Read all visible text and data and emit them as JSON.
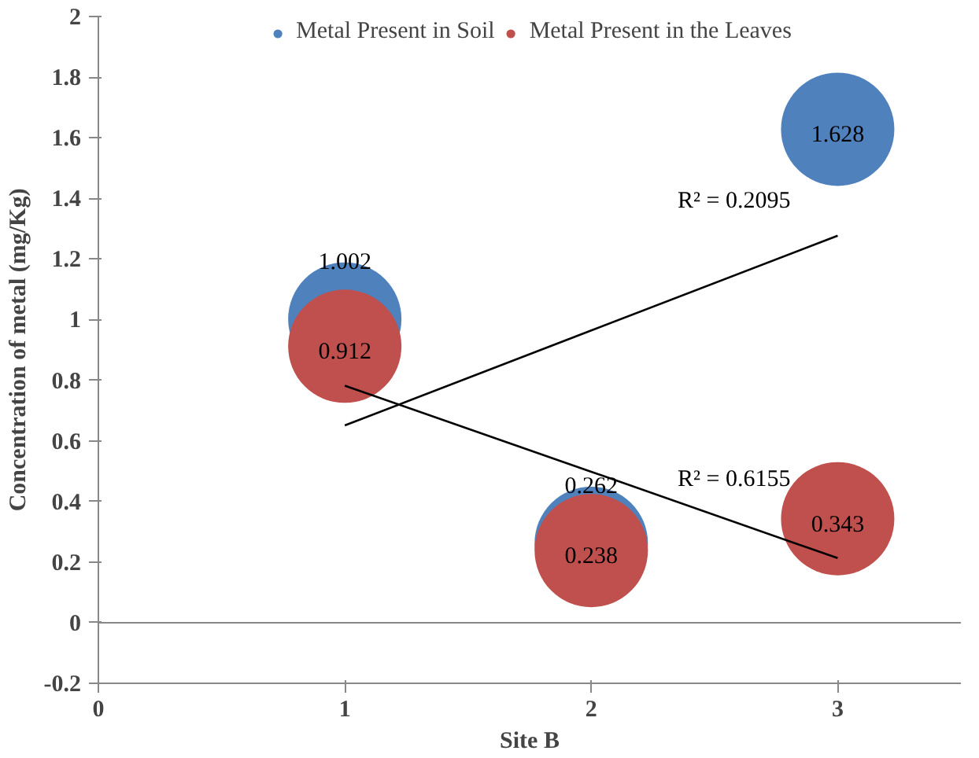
{
  "chart_data": {
    "type": "bubble",
    "xlabel": "Site B",
    "ylabel": "Concentration of metal (mg/Kg)",
    "x": [
      1,
      2,
      3
    ],
    "series": [
      {
        "name": "Metal Present in Soil",
        "color": "#4f81bd",
        "values": [
          1.002,
          0.262,
          1.628
        ],
        "sizes": [
          1,
          1,
          1
        ],
        "value_labels": [
          "1.002",
          "0.262",
          "1.628"
        ]
      },
      {
        "name": "Metal Present in the Leaves",
        "color": "#c0504d",
        "values": [
          0.912,
          0.238,
          0.343
        ],
        "sizes": [
          1,
          1,
          1
        ],
        "value_labels": [
          "0.912",
          "0.238",
          "0.343"
        ]
      },
      {
        "type": "line",
        "color": "#000000",
        "values": [
          0.651,
          0.964,
          1.277
        ]
      },
      {
        "type": "line",
        "color": "#000000",
        "values": [
          0.782,
          0.498,
          0.213
        ]
      }
    ],
    "annotations": [
      "R² = 0.2095",
      "R² = 0.6155"
    ],
    "ref_lines": [
      {
        "axis": "y",
        "value": 0,
        "color": "#888888"
      }
    ],
    "xlim": [
      0,
      3.5
    ],
    "xticks": [
      0,
      1,
      2,
      3
    ],
    "ylim": [
      -0.2,
      2
    ],
    "yticks": [
      -0.2,
      0,
      0.2,
      0.4,
      0.6,
      0.8,
      1,
      1.2,
      1.4,
      1.6,
      1.8,
      2
    ],
    "legend": "top"
  }
}
